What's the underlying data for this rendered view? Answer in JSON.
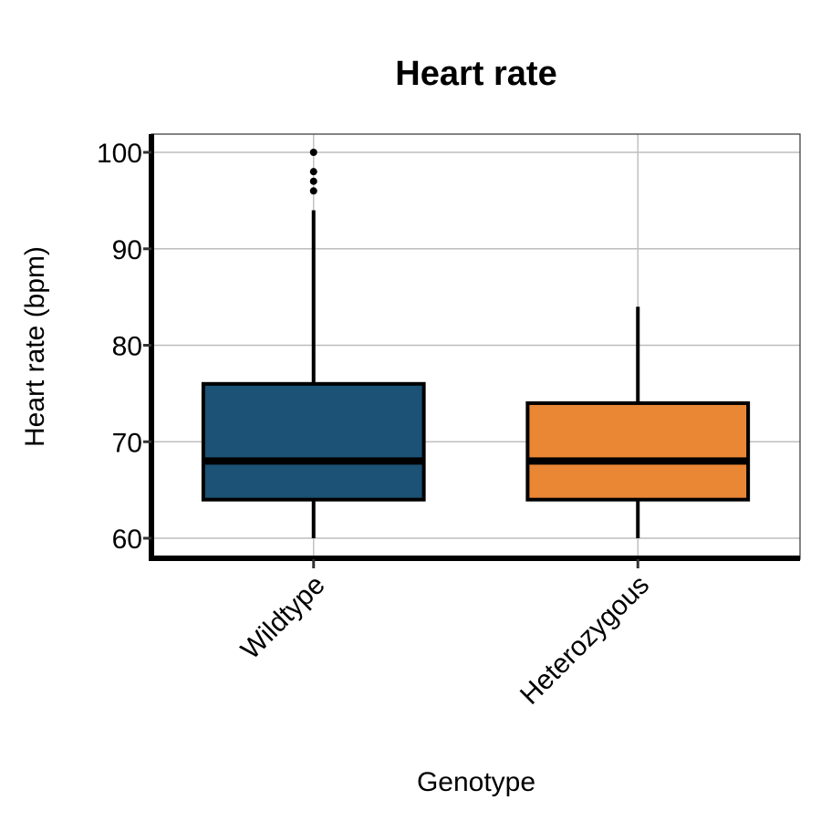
{
  "chart_data": {
    "type": "boxplot",
    "title": "Heart rate",
    "xlabel": "Genotype",
    "ylabel": "Heart rate (bpm)",
    "ylim": [
      58,
      102
    ],
    "yticks": [
      60,
      70,
      80,
      90,
      100
    ],
    "grid": true,
    "categories": [
      "Wildtype",
      "Heterozygous"
    ],
    "boxes": [
      {
        "category": "Wildtype",
        "color": "#1b5275",
        "whisker_low": 60,
        "q1": 64,
        "median": 68,
        "q3": 76,
        "whisker_high": 94,
        "outliers": [
          96,
          97,
          98,
          100
        ]
      },
      {
        "category": "Heterozygous",
        "color": "#ea8735",
        "whisker_low": 60,
        "q1": 64,
        "median": 68,
        "q3": 74,
        "whisker_high": 84,
        "outliers": []
      }
    ]
  }
}
